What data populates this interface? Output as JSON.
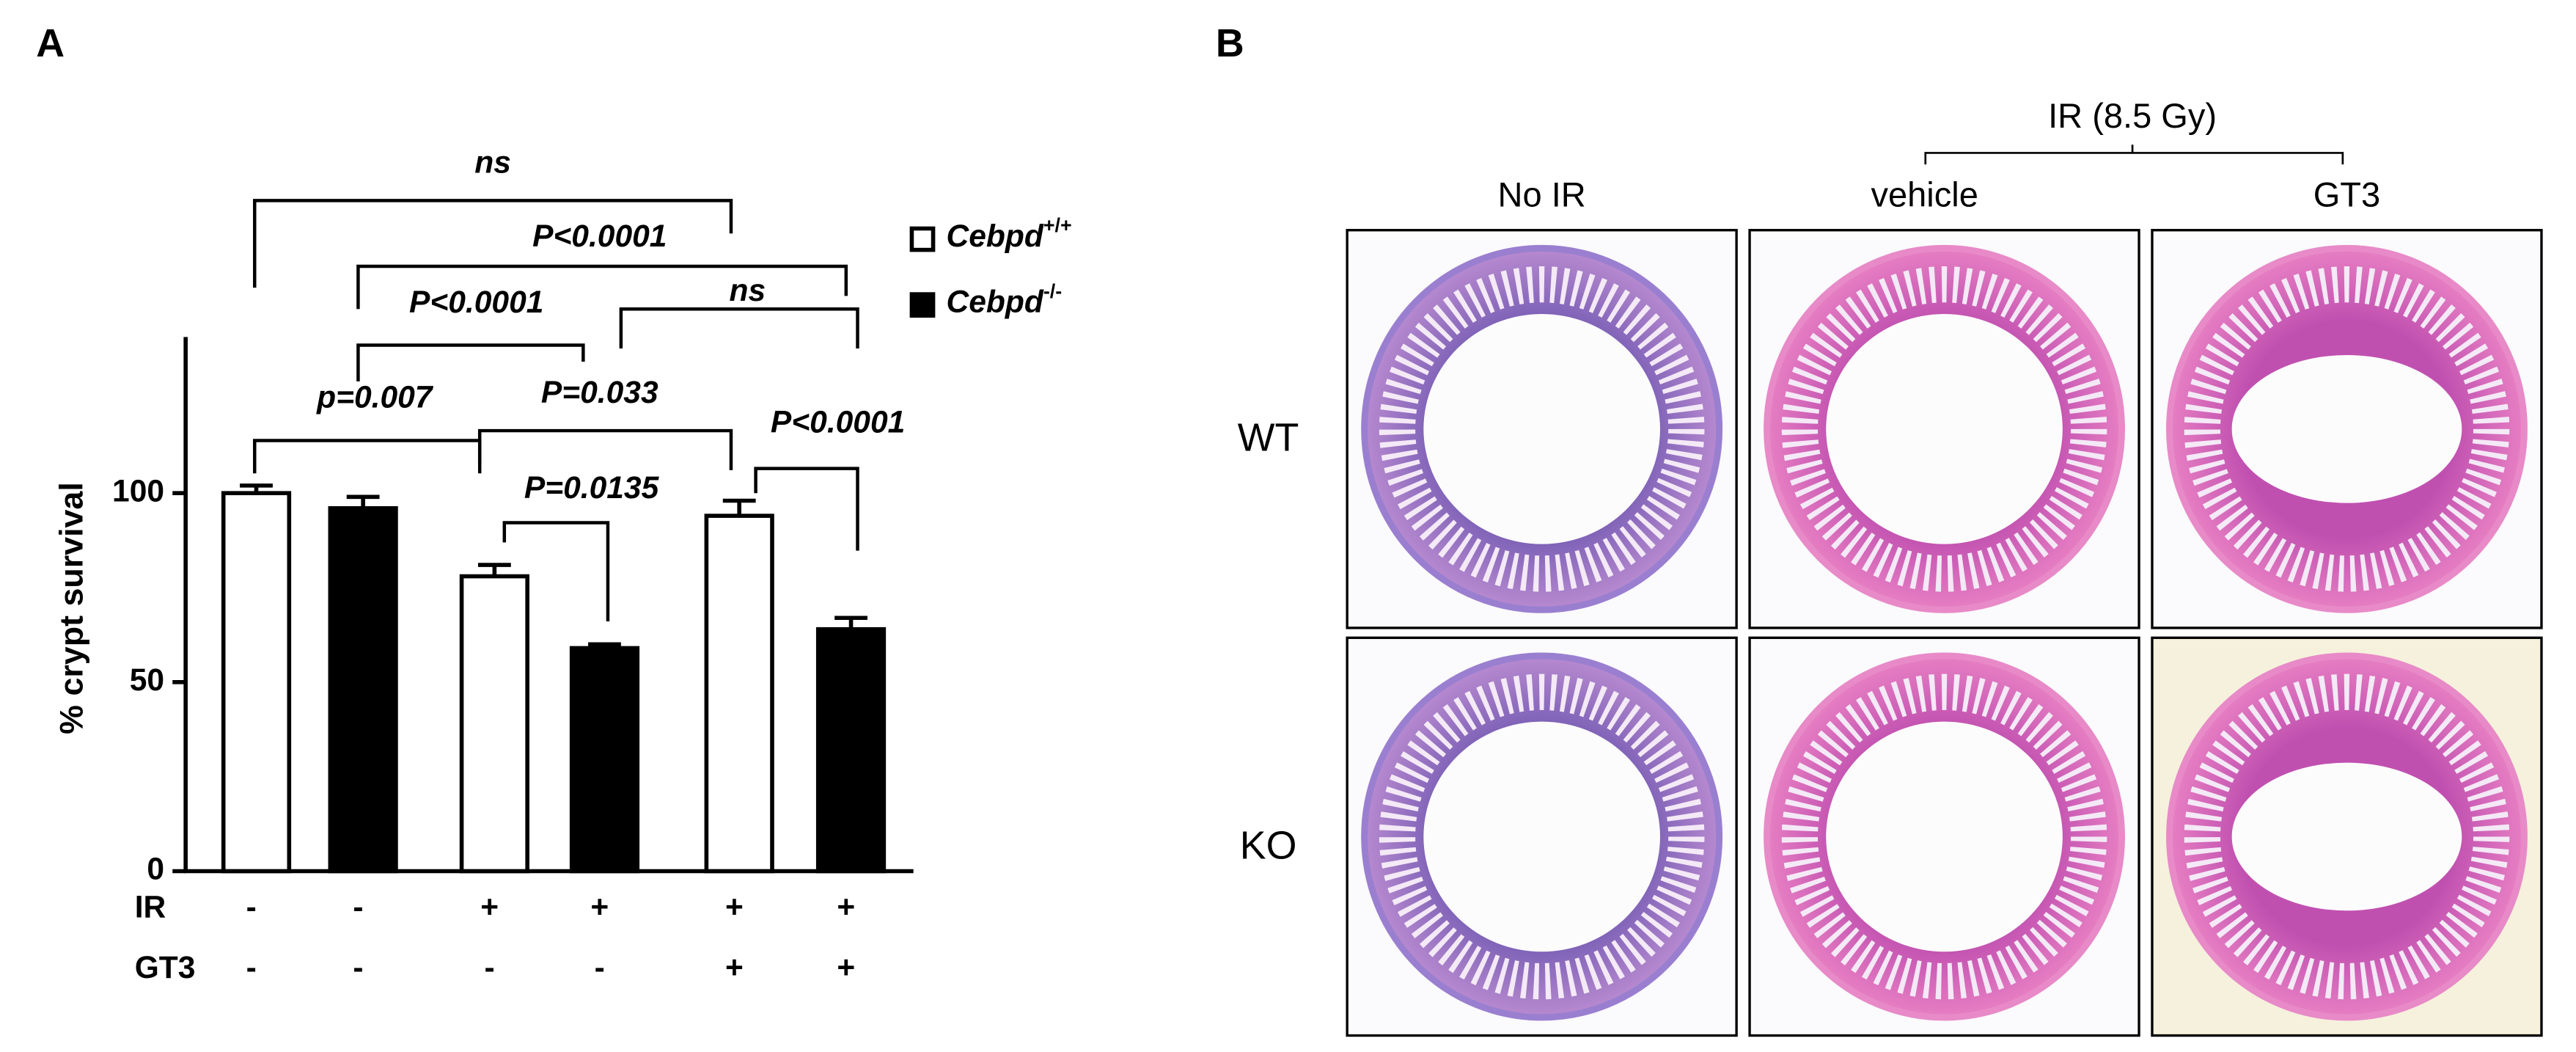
{
  "chart_data": {
    "type": "bar",
    "panel_label": "A",
    "y_label": "% crypt survival",
    "ylim": [
      0,
      140
    ],
    "yticks": [
      0,
      50,
      100
    ],
    "series": [
      {
        "name": "Cebpd",
        "superscript": "+/+",
        "color": "#ffffff",
        "values": [
          100,
          78,
          94
        ],
        "errors": [
          2,
          3,
          4
        ]
      },
      {
        "name": "Cebpd",
        "superscript": "-/-",
        "color": "#000000",
        "values": [
          96,
          59,
          64
        ],
        "errors": [
          3,
          1,
          3
        ]
      }
    ],
    "treatment_rows": [
      {
        "label": "IR",
        "signs": [
          "-",
          "-",
          "+",
          "+",
          "+",
          "+"
        ]
      },
      {
        "label": "GT3",
        "signs": [
          "-",
          "-",
          "-",
          "-",
          "+",
          "+"
        ]
      }
    ],
    "comparisons": [
      "ns",
      "P<0.0001",
      "P<0.0001",
      "ns",
      "p=0.007",
      "P=0.033",
      "P=0.0135",
      "P<0.0001"
    ]
  },
  "panel_b": {
    "panel_label": "B",
    "group_label": "IR (8.5 Gy)",
    "columns": [
      "No IR",
      "vehicle",
      "GT3"
    ],
    "rows": [
      "WT",
      "KO"
    ]
  }
}
